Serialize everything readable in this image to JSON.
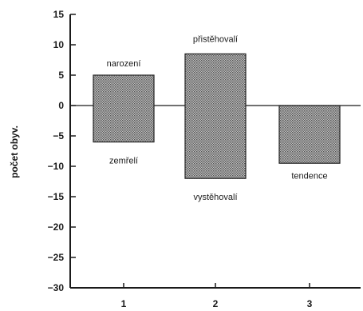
{
  "chart_data": {
    "type": "bar",
    "categories": [
      "1",
      "2",
      "3"
    ],
    "yticks": [
      15,
      10,
      5,
      0,
      -5,
      -10,
      -15,
      -20,
      -25,
      -30
    ],
    "ylim": [
      -30,
      15
    ],
    "ylabel": "počet obyv.",
    "grid": false,
    "bars": [
      {
        "category": "1",
        "top": 5,
        "bottom": -6
      },
      {
        "category": "2",
        "top": 8.5,
        "bottom": -12
      },
      {
        "category": "3",
        "top": 0,
        "bottom": -9.5
      }
    ],
    "annotations": [
      {
        "text": "narození",
        "category": "1",
        "y": 7
      },
      {
        "text": "zemřelí",
        "category": "1",
        "y": -9
      },
      {
        "text": "přistěhovalí",
        "category": "2",
        "y": 11
      },
      {
        "text": "vystěhovalí",
        "category": "2",
        "y": -15
      },
      {
        "text": "tendence",
        "category": "3",
        "y": -11.5
      }
    ],
    "colors": {
      "axis": "#1a1a1a",
      "bar_fill": "#9a9a9a",
      "bar_stroke": "#222222"
    }
  }
}
